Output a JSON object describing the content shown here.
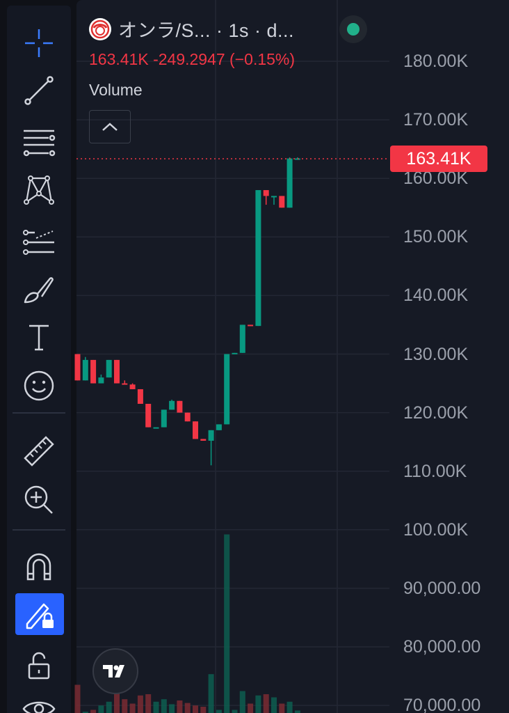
{
  "header": {
    "title": "オンラ/S...   · 1s · d...",
    "price_line": "163.41K  -249.2947 (−0.15%)",
    "volume_label": "Volume",
    "current_price_tag": "163.41K"
  },
  "colors": {
    "up": "#089981",
    "down": "#f23645",
    "accent": "#2962ff",
    "background": "#161a25"
  },
  "toolbar": {
    "items": [
      "crosshair-icon",
      "trend-line-icon",
      "fib-retracement-icon",
      "pattern-icon",
      "forecast-icon",
      "brush-icon",
      "text-icon",
      "emoji-icon",
      "ruler-icon",
      "zoom-in-icon",
      "magnet-icon",
      "lock-drawing-icon",
      "unlock-icon",
      "eye-icon"
    ],
    "active": "lock-drawing-icon"
  },
  "chart_data": {
    "type": "candlestick",
    "interval": "1s",
    "y_ticks": [
      "180.00K",
      "170.00K",
      "160.00K",
      "150.00K",
      "140.00K",
      "130.00K",
      "120.00K",
      "110.00K",
      "100.00K",
      "90,000.00",
      "80,000.00",
      "70,000.00"
    ],
    "ylim": [
      70000,
      183000
    ],
    "last_price": 163410,
    "candles": [
      {
        "o": 130000,
        "h": 130000,
        "l": 125500,
        "c": 125500
      },
      {
        "o": 125500,
        "h": 129500,
        "l": 125500,
        "c": 129000
      },
      {
        "o": 129000,
        "h": 129000,
        "l": 125000,
        "c": 125000
      },
      {
        "o": 125000,
        "h": 126500,
        "l": 125000,
        "c": 126000
      },
      {
        "o": 126000,
        "h": 129000,
        "l": 126000,
        "c": 129000
      },
      {
        "o": 129000,
        "h": 129000,
        "l": 125000,
        "c": 125000
      },
      {
        "o": 125000,
        "h": 125500,
        "l": 124800,
        "c": 124800
      },
      {
        "o": 124800,
        "h": 125000,
        "l": 124000,
        "c": 124000
      },
      {
        "o": 124000,
        "h": 124000,
        "l": 121500,
        "c": 121500
      },
      {
        "o": 121500,
        "h": 121500,
        "l": 117500,
        "c": 117500
      },
      {
        "o": 117500,
        "h": 117500,
        "l": 117500,
        "c": 117500
      },
      {
        "o": 117500,
        "h": 120500,
        "l": 117500,
        "c": 120500
      },
      {
        "o": 120500,
        "h": 122200,
        "l": 120500,
        "c": 122000
      },
      {
        "o": 122000,
        "h": 122000,
        "l": 120000,
        "c": 120000
      },
      {
        "o": 120000,
        "h": 120000,
        "l": 118500,
        "c": 118500
      },
      {
        "o": 118500,
        "h": 118500,
        "l": 115500,
        "c": 115500
      },
      {
        "o": 115500,
        "h": 115500,
        "l": 115200,
        "c": 115200
      },
      {
        "o": 115200,
        "h": 117000,
        "l": 111000,
        "c": 117000
      },
      {
        "o": 117000,
        "h": 118000,
        "l": 117000,
        "c": 118000
      },
      {
        "o": 118000,
        "h": 130000,
        "l": 118000,
        "c": 130000
      },
      {
        "o": 130000,
        "h": 130200,
        "l": 130000,
        "c": 130200
      },
      {
        "o": 130200,
        "h": 135000,
        "l": 130200,
        "c": 135000
      },
      {
        "o": 135000,
        "h": 135000,
        "l": 134800,
        "c": 134800
      },
      {
        "o": 134800,
        "h": 158000,
        "l": 134800,
        "c": 158000
      },
      {
        "o": 158000,
        "h": 158000,
        "l": 155500,
        "c": 157000
      },
      {
        "o": 157000,
        "h": 157000,
        "l": 155500,
        "c": 157000
      },
      {
        "o": 157000,
        "h": 157000,
        "l": 155000,
        "c": 155000
      },
      {
        "o": 155000,
        "h": 163600,
        "l": 155000,
        "c": 163410
      },
      {
        "o": 163410,
        "h": 163600,
        "l": 163410,
        "c": 163410
      }
    ],
    "volume": [
      0.45,
      0.02,
      0.05,
      0.12,
      0.18,
      0.4,
      0.22,
      0.15,
      0.28,
      0.3,
      0.18,
      0.22,
      0.14,
      0.2,
      0.16,
      0.12,
      0.1,
      0.62,
      0.05,
      2.85,
      0.05,
      0.35,
      0.15,
      0.28,
      0.3,
      0.25,
      0.15,
      0.18,
      0.04
    ]
  }
}
